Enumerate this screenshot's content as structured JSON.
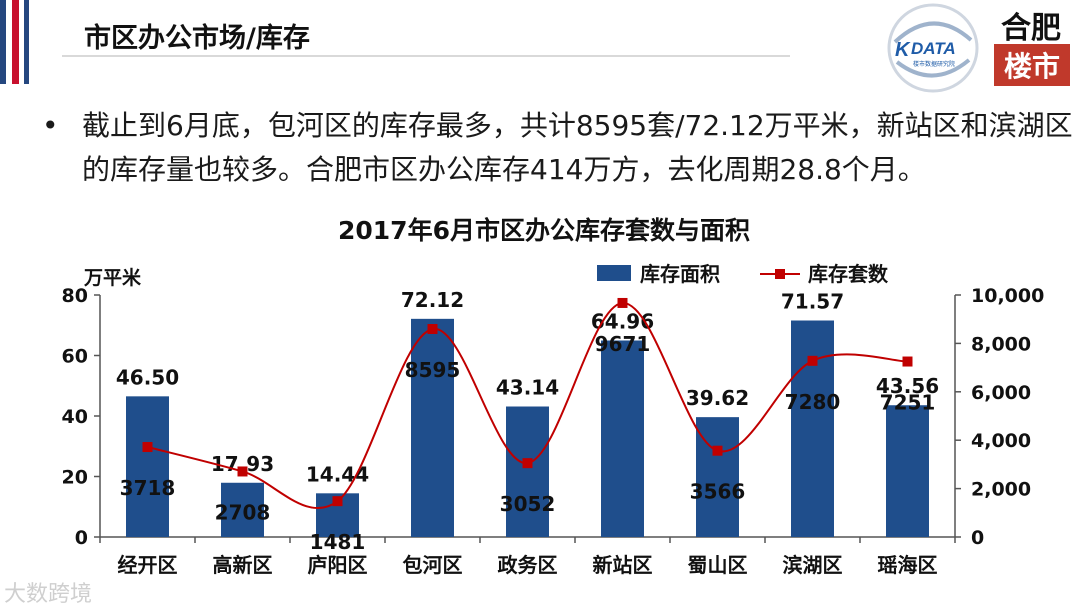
{
  "header": {
    "title": "市区办公市场/库存",
    "accent_colors": {
      "blue": "#25477f",
      "red": "#c8102e"
    }
  },
  "logos": {
    "kdata": {
      "text": "DATA",
      "prefix": "K",
      "subtitle": "楼市数据研究院",
      "color": "#1f5ca8"
    },
    "hefei": {
      "line1": "合肥",
      "line2": "楼市",
      "bg": "#c0392b"
    }
  },
  "body": {
    "bullet": "•",
    "text": "截止到6月底，包河区的库存最多，共计8595套/72.12万平米，新站区和滨湖区的库存量也较多。合肥市区办公库存414万方，去化周期28.8个月。"
  },
  "chart_data": {
    "type": "bar",
    "title": "2017年6月市区办公库存套数与面积",
    "categories": [
      "经开区",
      "高新区",
      "庐阳区",
      "包河区",
      "政务区",
      "新站区",
      "蜀山区",
      "滨湖区",
      "瑶海区"
    ],
    "series": [
      {
        "name": "库存面积",
        "type": "bar",
        "axis": "left",
        "color": "#1f4e8c",
        "values": [
          46.5,
          17.93,
          14.44,
          72.12,
          43.14,
          64.96,
          39.62,
          71.57,
          43.56
        ],
        "labels": [
          "46.50",
          "17.93",
          "14.44",
          "72.12",
          "43.14",
          "64.96",
          "39.62",
          "71.57",
          "43.56"
        ]
      },
      {
        "name": "库存套数",
        "type": "line",
        "axis": "right",
        "color": "#c00000",
        "values": [
          3718,
          2708,
          1481,
          8595,
          3052,
          9671,
          3566,
          7280,
          7251
        ],
        "labels": [
          "3718",
          "2708",
          "1481",
          "8595",
          "3052",
          "9671",
          "3566",
          "7280",
          "7251"
        ]
      }
    ],
    "y_left": {
      "label": "万平米",
      "range": [
        0,
        80
      ],
      "ticks": [
        "0",
        "20",
        "40",
        "60",
        "80"
      ]
    },
    "y_right": {
      "label": "",
      "range": [
        0,
        10000
      ],
      "ticks": [
        "0",
        "2,000",
        "4,000",
        "6,000",
        "8,000",
        "10,000"
      ]
    },
    "grid": false,
    "legend": "top-right"
  },
  "watermark": "大数跨境"
}
